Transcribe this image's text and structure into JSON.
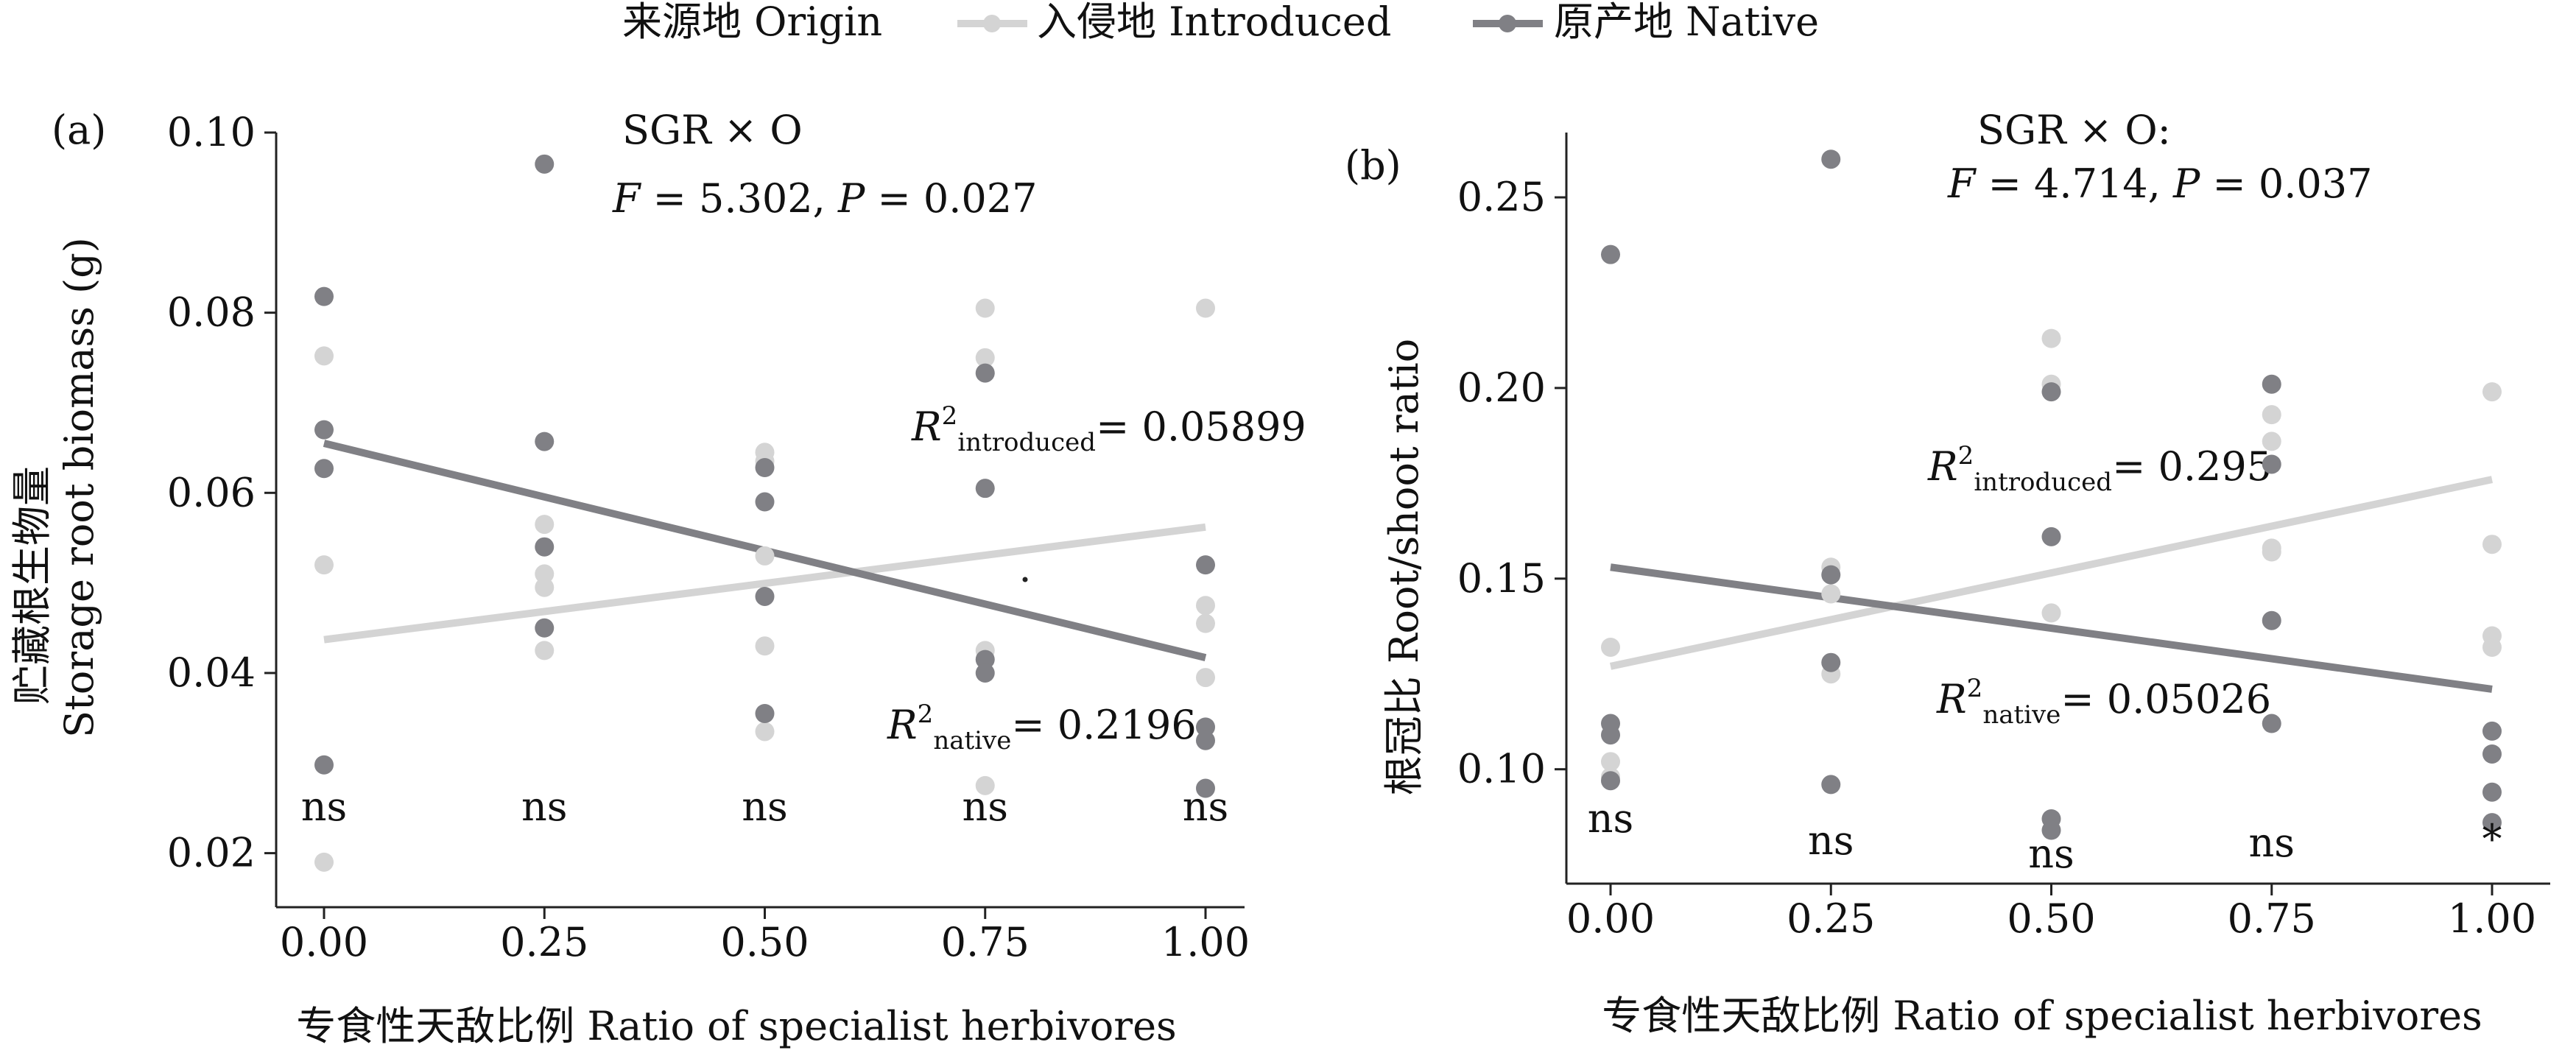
{
  "legend": {
    "title": "来源地 Origin",
    "items": [
      {
        "label": "入侵地 Introduced",
        "color": "#d4d4d4"
      },
      {
        "label": "原产地 Native",
        "color": "#808085"
      }
    ]
  },
  "chart_data": [
    {
      "type": "scatter",
      "panel_label": "(a)",
      "ylabel_cn": "贮藏根生物量",
      "ylabel_en": "Storage root biomass (g)",
      "xlabel": "专食性天敌比例 Ratio of specialist herbivores",
      "x_ticks": [
        "0.00",
        "0.25",
        "0.50",
        "0.75",
        "1.00"
      ],
      "y_ticks": [
        "0.02",
        "0.04",
        "0.06",
        "0.08",
        "0.10"
      ],
      "xlim": [
        0,
        1
      ],
      "ylim": [
        0.014,
        0.1
      ],
      "stat_line1": "SGR × O",
      "stat_line2": "F = 5.302, P = 0.027",
      "r2_introduced": "= 0.05899",
      "r2_native": "= 0.2196",
      "significance": [
        "ns",
        "ns",
        "ns",
        "ns",
        "ns"
      ],
      "series": [
        {
          "name": "入侵地 Introduced",
          "color": "#d4d4d4",
          "points": [
            [
              0,
              0.0752
            ],
            [
              0,
              0.052
            ],
            [
              0,
              0.019
            ],
            [
              0.25,
              0.0565
            ],
            [
              0.25,
              0.051
            ],
            [
              0.25,
              0.0495
            ],
            [
              0.25,
              0.0425
            ],
            [
              0.5,
              0.0645
            ],
            [
              0.5,
              0.0635
            ],
            [
              0.5,
              0.053
            ],
            [
              0.5,
              0.043
            ],
            [
              0.5,
              0.0335
            ],
            [
              0.75,
              0.0805
            ],
            [
              0.75,
              0.075
            ],
            [
              0.75,
              0.0425
            ],
            [
              0.75,
              0.0275
            ],
            [
              1,
              0.0805
            ],
            [
              1,
              0.0475
            ],
            [
              1,
              0.0455
            ],
            [
              1,
              0.0395
            ]
          ],
          "trend": [
            [
              0,
              0.0437
            ],
            [
              1,
              0.0562
            ]
          ]
        },
        {
          "name": "原产地 Native",
          "color": "#808085",
          "points": [
            [
              0,
              0.0818
            ],
            [
              0,
              0.067
            ],
            [
              0,
              0.0627
            ],
            [
              0,
              0.0298
            ],
            [
              0.25,
              0.0965
            ],
            [
              0.25,
              0.0657
            ],
            [
              0.25,
              0.054
            ],
            [
              0.25,
              0.045
            ],
            [
              0.5,
              0.0628
            ],
            [
              0.5,
              0.059
            ],
            [
              0.5,
              0.0485
            ],
            [
              0.5,
              0.0355
            ],
            [
              0.75,
              0.0733
            ],
            [
              0.75,
              0.0605
            ],
            [
              0.75,
              0.0415
            ],
            [
              0.75,
              0.04
            ],
            [
              1,
              0.052
            ],
            [
              1,
              0.034
            ],
            [
              1,
              0.0325
            ],
            [
              1,
              0.0272
            ]
          ],
          "trend": [
            [
              0,
              0.0655
            ],
            [
              1,
              0.0417
            ]
          ]
        }
      ]
    },
    {
      "type": "scatter",
      "panel_label": "(b)",
      "ylabel": "根冠比 Root/shoot ratio",
      "xlabel": "专食性天敌比例 Ratio of specialist herbivores",
      "x_ticks": [
        "0.00",
        "0.25",
        "0.50",
        "0.75",
        "1.00"
      ],
      "y_ticks": [
        "0.10",
        "0.15",
        "0.20",
        "0.25"
      ],
      "xlim": [
        0,
        1
      ],
      "ylim": [
        0.07,
        0.267
      ],
      "stat_line1": "SGR × O:",
      "stat_line2": "F = 4.714, P = 0.037",
      "r2_introduced": "= 0.295",
      "r2_native": "= 0.05026",
      "significance": [
        "ns",
        "ns",
        "ns",
        "ns",
        "*"
      ],
      "series": [
        {
          "name": "入侵地 Introduced",
          "color": "#d4d4d4",
          "points": [
            [
              0,
              0.132
            ],
            [
              0,
              0.102
            ],
            [
              0,
              0.098
            ],
            [
              0.25,
              0.153
            ],
            [
              0.25,
              0.146
            ],
            [
              0.25,
              0.125
            ],
            [
              0.5,
              0.213
            ],
            [
              0.5,
              0.201
            ],
            [
              0.5,
              0.141
            ],
            [
              0.75,
              0.193
            ],
            [
              0.75,
              0.186
            ],
            [
              0.75,
              0.158
            ],
            [
              0.75,
              0.157
            ],
            [
              1,
              0.199
            ],
            [
              1,
              0.159
            ],
            [
              1,
              0.135
            ],
            [
              1,
              0.132
            ]
          ],
          "trend": [
            [
              0,
              0.127
            ],
            [
              1,
              0.176
            ]
          ]
        },
        {
          "name": "原产地 Native",
          "color": "#808085",
          "points": [
            [
              0,
              0.235
            ],
            [
              0,
              0.112
            ],
            [
              0,
              0.109
            ],
            [
              0,
              0.097
            ],
            [
              0.25,
              0.26
            ],
            [
              0.25,
              0.151
            ],
            [
              0.25,
              0.128
            ],
            [
              0.25,
              0.096
            ],
            [
              0.5,
              0.199
            ],
            [
              0.5,
              0.161
            ],
            [
              0.5,
              0.087
            ],
            [
              0.5,
              0.084
            ],
            [
              0.75,
              0.201
            ],
            [
              0.75,
              0.18
            ],
            [
              0.75,
              0.139
            ],
            [
              0.75,
              0.112
            ],
            [
              1,
              0.11
            ],
            [
              1,
              0.104
            ],
            [
              1,
              0.094
            ],
            [
              1,
              0.086
            ]
          ],
          "trend": [
            [
              0,
              0.153
            ],
            [
              1,
              0.121
            ]
          ]
        }
      ]
    }
  ]
}
